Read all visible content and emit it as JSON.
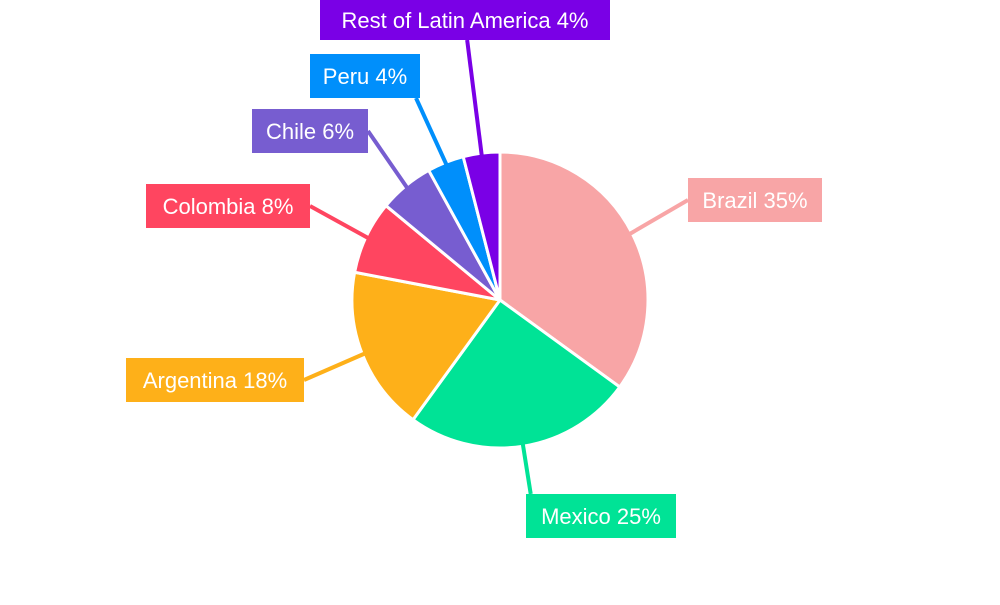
{
  "chart_data": {
    "type": "pie",
    "title": "",
    "slices": [
      {
        "label": "Brazil",
        "value": 35,
        "color": "#F8A5A6"
      },
      {
        "label": "Mexico",
        "value": 25,
        "color": "#00E396"
      },
      {
        "label": "Argentina",
        "value": 18,
        "color": "#FEB019"
      },
      {
        "label": "Colombia",
        "value": 8,
        "color": "#FF4560"
      },
      {
        "label": "Chile",
        "value": 6,
        "color": "#775DD0"
      },
      {
        "label": "Peru",
        "value": 4,
        "color": "#008FFB"
      },
      {
        "label": "Rest of Latin America",
        "value": 4,
        "color": "#7A00E6"
      }
    ],
    "label_texts": [
      "Brazil 35%",
      "Mexico 25%",
      "Argentina 18%",
      "Colombia 8%",
      "Chile 6%",
      "Peru 4%",
      "Rest of Latin America 4%"
    ],
    "start": "12 o'clock",
    "direction": "clockwise",
    "legend": "none",
    "data_labels": "outside, colored boxes with leader lines"
  }
}
